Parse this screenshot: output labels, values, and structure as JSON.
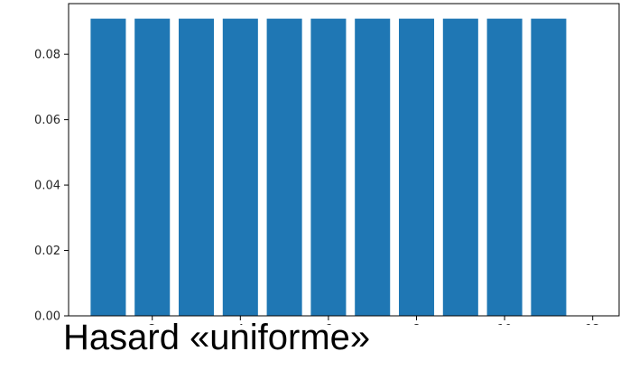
{
  "caption": "Hasard «uniforme»",
  "chart_data": {
    "type": "bar",
    "x": [
      1,
      2,
      3,
      4,
      5,
      6,
      7,
      8,
      9,
      10,
      11
    ],
    "values": [
      0.0909,
      0.0909,
      0.0909,
      0.0909,
      0.0909,
      0.0909,
      0.0909,
      0.0909,
      0.0909,
      0.0909,
      0.0909
    ],
    "xlim": [
      0.1,
      12.6
    ],
    "ylim": [
      0,
      0.0955
    ],
    "xticks": [
      2,
      4,
      6,
      8,
      10,
      12
    ],
    "yticks": [
      0.0,
      0.02,
      0.04,
      0.06,
      0.08
    ],
    "xtick_labels": [
      "2",
      "4",
      "6",
      "8",
      "10",
      "12"
    ],
    "ytick_labels": [
      "0.00",
      "0.02",
      "0.04",
      "0.06",
      "0.08"
    ],
    "bar_color": "#1f77b4",
    "grid": false,
    "title": "",
    "xlabel": "",
    "ylabel": ""
  }
}
